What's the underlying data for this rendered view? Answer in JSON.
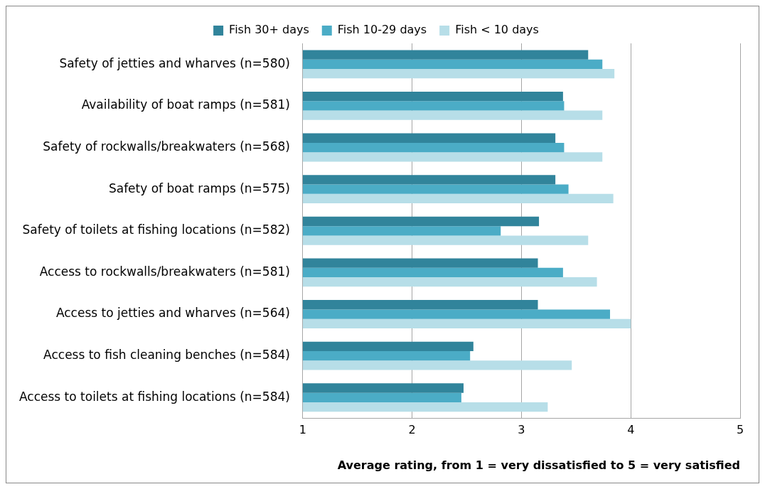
{
  "chart_data": {
    "type": "bar",
    "orientation": "horizontal",
    "xlabel": "Average rating, from 1 = very dissatisfied to 5 = very satisfied",
    "categories": [
      "Safety of jetties and wharves (n=580)",
      "Availability of boat ramps (n=581)",
      "Safety of rockwalls/breakwaters (n=568)",
      "Safety of boat ramps (n=575)",
      "Safety of toilets at fishing locations (n=582)",
      "Access to rockwalls/breakwaters (n=581)",
      "Access to jetties and wharves (n=564)",
      "Access to fish cleaning benches (n=584)",
      "Access to toilets at fishing locations (n=584)"
    ],
    "series": [
      {
        "name": "Fish 30+ days",
        "color": "#31849b",
        "values": [
          3.61,
          3.38,
          3.31,
          3.31,
          3.16,
          3.15,
          3.15,
          2.56,
          2.47
        ]
      },
      {
        "name": "Fish 10-29 days",
        "color": "#4bacc6",
        "values": [
          3.74,
          3.39,
          3.39,
          3.43,
          2.81,
          3.38,
          3.81,
          2.53,
          2.45
        ]
      },
      {
        "name": "Fish < 10 days",
        "color": "#b7dee8",
        "values": [
          3.85,
          3.74,
          3.74,
          3.84,
          3.61,
          3.69,
          4.0,
          3.46,
          3.24
        ]
      }
    ],
    "xlim": [
      1,
      5
    ],
    "xticks": [
      1,
      2,
      3,
      4,
      5
    ],
    "grid": "x",
    "legend": "top"
  }
}
